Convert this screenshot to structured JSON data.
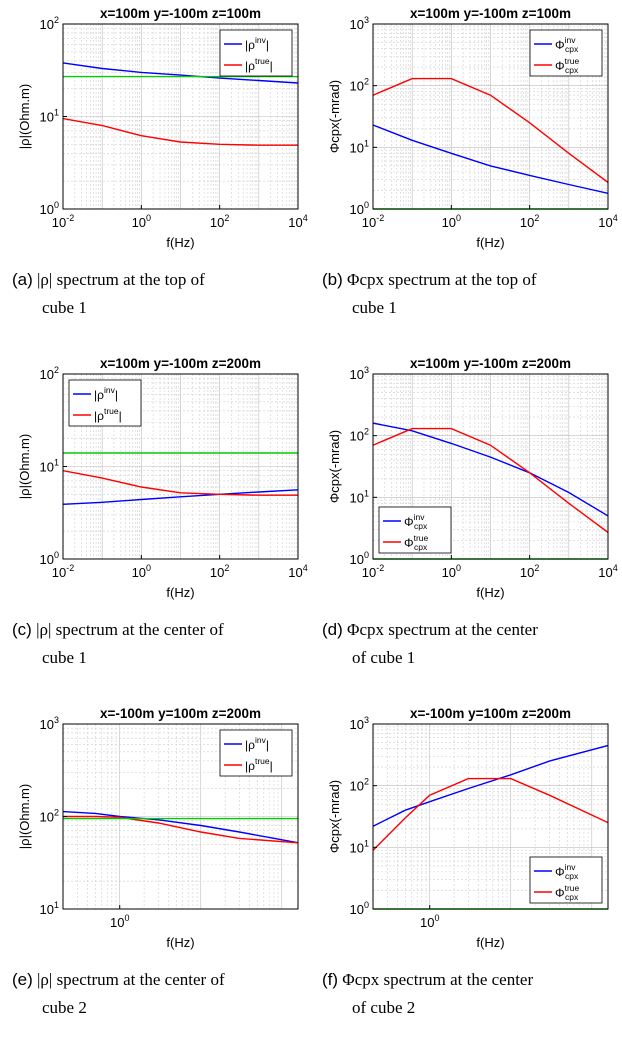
{
  "colors": {
    "inv": "#0000ff",
    "true": "#ff0000",
    "ref": "#00cc00",
    "grid": "#d0d0d0"
  },
  "panels": [
    {
      "title": "x=100m y=-100m z=100m",
      "caption_label": "(a)",
      "caption_line1": "|ρ| spectrum at the top of",
      "caption_line2": "cube 1",
      "ylabel": "|ρ|(Ohm.m)",
      "xlabel": "f(Hz)",
      "xlim_exp": [
        -2,
        4
      ],
      "ylim_exp": [
        0,
        2
      ],
      "xticks_exp": [
        -2,
        0,
        2,
        4
      ],
      "yticks_exp": [
        0,
        1,
        2
      ],
      "legend_pos": "top-right",
      "legend_kind": "rho",
      "legend_labels": [
        "|ρ",
        "inv",
        "|"
      ]
    },
    {
      "title": "x=100m y=-100m z=100m",
      "caption_label": "(b)",
      "caption_line1": "Φcpx spectrum at the top of",
      "caption_line2": "cube 1",
      "ylabel": "Φcpx(-mrad)",
      "xlabel": "f(Hz)",
      "xlim_exp": [
        -2,
        4
      ],
      "ylim_exp": [
        0,
        3
      ],
      "xticks_exp": [
        -2,
        0,
        2,
        4
      ],
      "yticks_exp": [
        0,
        1,
        2,
        3
      ],
      "legend_pos": "top-right",
      "legend_kind": "phi"
    },
    {
      "title": "x=100m y=-100m z=200m",
      "caption_label": "(c)",
      "caption_line1": "|ρ| spectrum at the center of",
      "caption_line2": "cube 1",
      "ylabel": "|ρ|(Ohm.m)",
      "xlabel": "f(Hz)",
      "xlim_exp": [
        -2,
        4
      ],
      "ylim_exp": [
        0,
        2
      ],
      "xticks_exp": [
        -2,
        0,
        2,
        4
      ],
      "yticks_exp": [
        0,
        1,
        2
      ],
      "legend_pos": "top-left",
      "legend_kind": "rho"
    },
    {
      "title": "x=100m y=-100m z=200m",
      "caption_label": "(d)",
      "caption_line1": "Φcpx spectrum at the center",
      "caption_line2": "of cube 1",
      "ylabel": "Φcpx(-mrad)",
      "xlabel": "f(Hz)",
      "xlim_exp": [
        -2,
        4
      ],
      "ylim_exp": [
        0,
        3
      ],
      "xticks_exp": [
        -2,
        0,
        2,
        4
      ],
      "yticks_exp": [
        0,
        1,
        2,
        3
      ],
      "legend_pos": "bottom-left",
      "legend_kind": "phi"
    },
    {
      "title": "x=-100m y=100m z=200m",
      "caption_label": "(e)",
      "caption_line1": "|ρ| spectrum at the center of",
      "caption_line2": "cube 2",
      "ylabel": "|ρ|(Ohm.m)",
      "xlabel": "f(Hz)",
      "xlim_exp": [
        -0.7,
        2.2
      ],
      "ylim_exp": [
        1,
        3
      ],
      "xticks_exp": [
        0
      ],
      "yticks_exp": [
        1,
        2,
        3
      ],
      "legend_pos": "top-right",
      "legend_kind": "rho"
    },
    {
      "title": "x=-100m y=100m z=200m",
      "caption_label": "(f)",
      "caption_line1": "Φcpx spectrum at the center",
      "caption_line2": "of cube 2",
      "ylabel": "Φcpx(-mrad)",
      "xlabel": "f(Hz)",
      "xlim_exp": [
        -0.7,
        2.2
      ],
      "ylim_exp": [
        0,
        3
      ],
      "xticks_exp": [
        0
      ],
      "yticks_exp": [
        0,
        1,
        2,
        3
      ],
      "legend_pos": "bottom-right",
      "legend_kind": "phi"
    }
  ],
  "legend_text": {
    "rho_prefix": "|ρ",
    "rho_suffix": "|",
    "phi_base": "Φ",
    "sub": "cpx",
    "inv": "inv",
    "true": "true"
  },
  "chart_data": [
    {
      "type": "line",
      "title": "x=100m y=-100m z=100m",
      "xlabel": "f(Hz)",
      "ylabel": "|ρ|(Ohm.m)",
      "xscale": "log",
      "yscale": "log",
      "xlim": [
        0.01,
        10000
      ],
      "ylim": [
        1,
        100
      ],
      "grid": true,
      "legend": "top-right",
      "series": [
        {
          "name": "|ρ inv|",
          "color": "blue",
          "x": [
            0.01,
            0.1,
            1,
            10,
            100,
            1000,
            10000
          ],
          "y": [
            38,
            33,
            30,
            28,
            26,
            24.5,
            23
          ]
        },
        {
          "name": "|ρ true|",
          "color": "red",
          "x": [
            0.01,
            0.1,
            1,
            10,
            100,
            1000,
            10000
          ],
          "y": [
            9.5,
            8,
            6.2,
            5.3,
            5,
            4.9,
            4.9
          ]
        },
        {
          "color": "green",
          "x": [
            0.01,
            10000
          ],
          "y": [
            27,
            27
          ]
        }
      ]
    },
    {
      "type": "line",
      "title": "x=100m y=-100m z=100m",
      "xlabel": "f(Hz)",
      "ylabel": "Φcpx(-mrad)",
      "xscale": "log",
      "yscale": "log",
      "xlim": [
        0.01,
        10000
      ],
      "ylim": [
        1,
        1000
      ],
      "grid": true,
      "legend": "top-right",
      "series": [
        {
          "name": "Φcpx inv",
          "color": "blue",
          "x": [
            0.01,
            0.1,
            1,
            10,
            100,
            1000,
            10000
          ],
          "y": [
            23,
            13,
            8,
            5,
            3.5,
            2.5,
            1.8
          ]
        },
        {
          "name": "Φcpx true",
          "color": "red",
          "x": [
            0.01,
            0.1,
            1,
            10,
            100,
            1000,
            10000
          ],
          "y": [
            70,
            130,
            130,
            70,
            25,
            8,
            2.7
          ]
        },
        {
          "color": "green",
          "x": [
            0.01,
            10000
          ],
          "y": [
            1,
            1
          ]
        }
      ]
    },
    {
      "type": "line",
      "title": "x=100m y=-100m z=200m",
      "xlabel": "f(Hz)",
      "ylabel": "|ρ|(Ohm.m)",
      "xscale": "log",
      "yscale": "log",
      "xlim": [
        0.01,
        10000
      ],
      "ylim": [
        1,
        100
      ],
      "grid": true,
      "legend": "top-left",
      "series": [
        {
          "name": "|ρ inv|",
          "color": "blue",
          "x": [
            0.01,
            0.1,
            1,
            10,
            100,
            1000,
            10000
          ],
          "y": [
            3.9,
            4.1,
            4.4,
            4.7,
            5,
            5.3,
            5.6
          ]
        },
        {
          "name": "|ρ true|",
          "color": "red",
          "x": [
            0.01,
            0.1,
            1,
            10,
            100,
            1000,
            10000
          ],
          "y": [
            9,
            7.5,
            6,
            5.2,
            5,
            4.9,
            4.9
          ]
        },
        {
          "color": "green",
          "x": [
            0.01,
            10000
          ],
          "y": [
            14,
            14
          ]
        }
      ]
    },
    {
      "type": "line",
      "title": "x=100m y=-100m z=200m",
      "xlabel": "f(Hz)",
      "ylabel": "Φcpx(-mrad)",
      "xscale": "log",
      "yscale": "log",
      "xlim": [
        0.01,
        10000
      ],
      "ylim": [
        1,
        1000
      ],
      "grid": true,
      "legend": "bottom-left",
      "series": [
        {
          "name": "Φcpx inv",
          "color": "blue",
          "x": [
            0.01,
            0.1,
            1,
            10,
            100,
            1000,
            10000
          ],
          "y": [
            160,
            120,
            75,
            45,
            25,
            12,
            5
          ]
        },
        {
          "name": "Φcpx true",
          "color": "red",
          "x": [
            0.01,
            0.1,
            1,
            10,
            100,
            1000,
            10000
          ],
          "y": [
            70,
            130,
            130,
            70,
            25,
            8,
            2.7
          ]
        },
        {
          "color": "green",
          "x": [
            0.01,
            10000
          ],
          "y": [
            1,
            1
          ]
        }
      ]
    },
    {
      "type": "line",
      "title": "x=-100m y=100m z=200m",
      "xlabel": "f(Hz)",
      "ylabel": "|ρ|(Ohm.m)",
      "xscale": "log",
      "yscale": "log",
      "xlim": [
        0.2,
        160
      ],
      "ylim": [
        10,
        1000
      ],
      "grid": true,
      "legend": "top-right",
      "series": [
        {
          "name": "|ρ inv|",
          "color": "blue",
          "x": [
            0.2,
            0.5,
            1,
            3,
            10,
            30,
            160
          ],
          "y": [
            113,
            108,
            100,
            92,
            80,
            68,
            52
          ]
        },
        {
          "name": "|ρ true|",
          "color": "red",
          "x": [
            0.2,
            0.5,
            1,
            3,
            10,
            30,
            160
          ],
          "y": [
            100,
            100,
            98,
            85,
            68,
            58,
            52
          ]
        },
        {
          "color": "green",
          "x": [
            0.2,
            160
          ],
          "y": [
            95,
            95
          ]
        }
      ]
    },
    {
      "type": "line",
      "title": "x=-100m y=100m z=200m",
      "xlabel": "f(Hz)",
      "ylabel": "Φcpx(-mrad)",
      "xscale": "log",
      "yscale": "log",
      "xlim": [
        0.2,
        160
      ],
      "ylim": [
        1,
        1000
      ],
      "grid": true,
      "legend": "bottom-right",
      "series": [
        {
          "name": "Φcpx inv",
          "color": "blue",
          "x": [
            0.2,
            0.5,
            1,
            3,
            10,
            30,
            160
          ],
          "y": [
            22,
            40,
            55,
            90,
            150,
            250,
            450
          ]
        },
        {
          "name": "Φcpx true",
          "color": "red",
          "x": [
            0.2,
            0.5,
            1,
            3,
            10,
            30,
            160
          ],
          "y": [
            9,
            30,
            70,
            130,
            130,
            70,
            25
          ]
        },
        {
          "color": "green",
          "x": [
            0.2,
            160
          ],
          "y": [
            1,
            1
          ]
        }
      ]
    }
  ]
}
